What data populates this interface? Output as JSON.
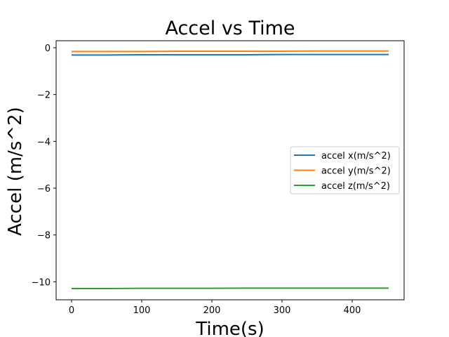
{
  "chart_data": {
    "type": "line",
    "title": "Accel vs Time",
    "xlabel": "Time(s)",
    "ylabel": "Accel (m/s^2)",
    "xlim": [
      -22,
      474
    ],
    "ylim": [
      -10.77,
      0.3
    ],
    "xticks": [
      0,
      100,
      200,
      300,
      400
    ],
    "yticks": [
      0,
      -2,
      -4,
      -6,
      -8,
      -10
    ],
    "grid": false,
    "legend_position": "center-right",
    "series": [
      {
        "name": "accel x(m/s^2)",
        "color": "#1f77b4",
        "x": [
          0,
          50,
          100,
          150,
          200,
          250,
          300,
          350,
          400,
          452
        ],
        "y": [
          -0.31,
          -0.31,
          -0.3,
          -0.3,
          -0.3,
          -0.3,
          -0.29,
          -0.29,
          -0.29,
          -0.29
        ]
      },
      {
        "name": "accel y(m/s^2)",
        "color": "#ff7f0e",
        "x": [
          0,
          50,
          100,
          150,
          200,
          250,
          300,
          350,
          400,
          452
        ],
        "y": [
          -0.16,
          -0.16,
          -0.16,
          -0.15,
          -0.15,
          -0.15,
          -0.15,
          -0.14,
          -0.14,
          -0.14
        ]
      },
      {
        "name": "accel z(m/s^2)",
        "color": "#2ca02c",
        "x": [
          0,
          50,
          100,
          150,
          200,
          250,
          300,
          350,
          400,
          452
        ],
        "y": [
          -10.29,
          -10.29,
          -10.28,
          -10.28,
          -10.28,
          -10.27,
          -10.27,
          -10.27,
          -10.27,
          -10.27
        ]
      }
    ]
  }
}
